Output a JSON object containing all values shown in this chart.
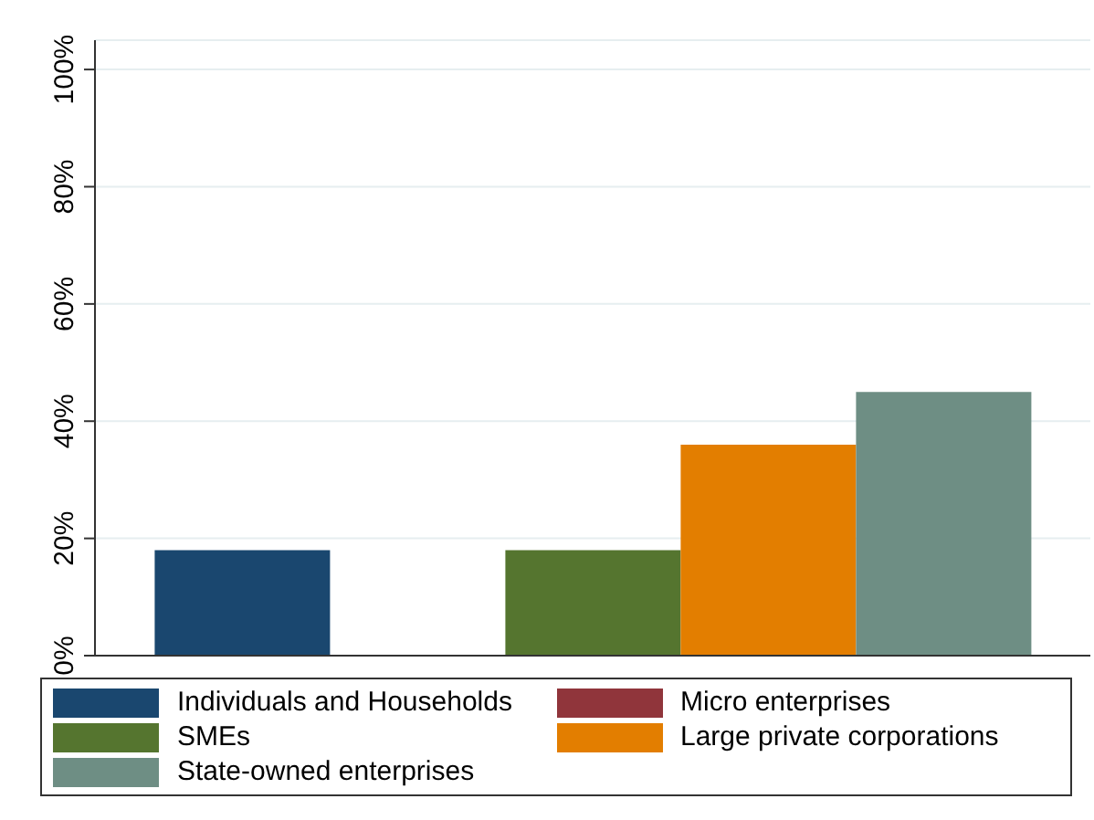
{
  "chart_data": {
    "type": "bar",
    "categories": [
      null
    ],
    "series": [
      {
        "name": "Individuals and Households",
        "color": "#1a476f",
        "values": [
          18
        ]
      },
      {
        "name": "Micro enterprises",
        "color": "#90353b",
        "values": [
          0
        ]
      },
      {
        "name": "SMEs",
        "color": "#55752f",
        "values": [
          18
        ]
      },
      {
        "name": "Large private corporations",
        "color": "#e37e00",
        "values": [
          36
        ]
      },
      {
        "name": "State-owned enterprises",
        "color": "#6e8e84",
        "values": [
          45
        ]
      }
    ],
    "ylim": [
      0,
      105
    ],
    "yticks": [
      {
        "value": 0,
        "label": "0%"
      },
      {
        "value": 20,
        "label": "20%"
      },
      {
        "value": 40,
        "label": "40%"
      },
      {
        "value": 60,
        "label": "60%"
      },
      {
        "value": 80,
        "label": "80%"
      },
      {
        "value": 100,
        "label": "100%"
      }
    ],
    "grid": "y",
    "legend": "bottom"
  }
}
